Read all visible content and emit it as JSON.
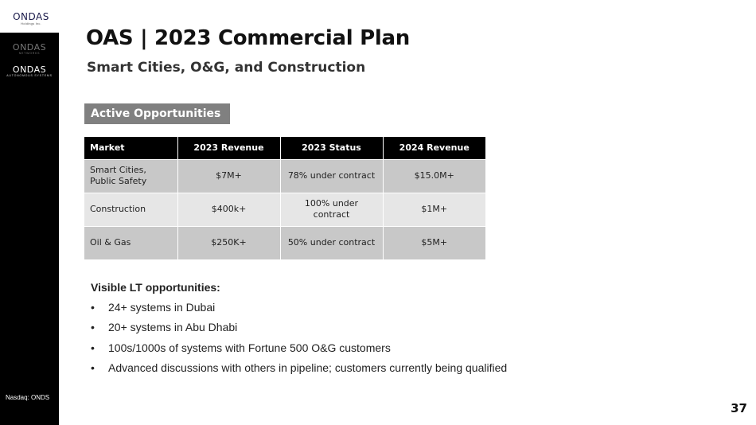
{
  "header": {
    "title": "OAS | 2023 Commercial Plan",
    "subtitle": "Smart Cities, O&G, and Construction"
  },
  "logos": {
    "top": {
      "brand": "ONDAS",
      "sub": "Holdings Inc."
    },
    "sidebar": [
      {
        "brand": "ONDAS",
        "sub": "NETWORKS"
      },
      {
        "brand": "ONDAS",
        "sub": "AUTONOMOUS SYSTEMS"
      }
    ]
  },
  "section_label": "Active Opportunities",
  "table": {
    "headers": [
      "Market",
      "2023 Revenue",
      "2023 Status",
      "2024 Revenue"
    ],
    "rows": [
      [
        "Smart Cities, Public Safety",
        "$7M+",
        "78% under contract",
        "$15.0M+"
      ],
      [
        "Construction",
        "$400k+",
        "100% under contract",
        "$1M+"
      ],
      [
        "Oil & Gas",
        "$250K+",
        "50% under contract",
        "$5M+"
      ]
    ]
  },
  "opportunities": {
    "heading": "Visible LT opportunities:",
    "items": [
      "24+ systems in Dubai",
      "20+ systems in Abu Dhabi",
      "100s/1000s of systems with Fortune 500 O&G customers",
      "Advanced discussions with others in pipeline; customers currently being qualified"
    ]
  },
  "footer": {
    "ticker": "Nasdaq: ONDS",
    "page_number": "37"
  },
  "colors": {
    "sidebar": "#000000",
    "section_label_bg": "#808080",
    "table_header_bg": "#000000",
    "row_dark": "#c8c8c8",
    "row_light": "#e6e6e6"
  }
}
